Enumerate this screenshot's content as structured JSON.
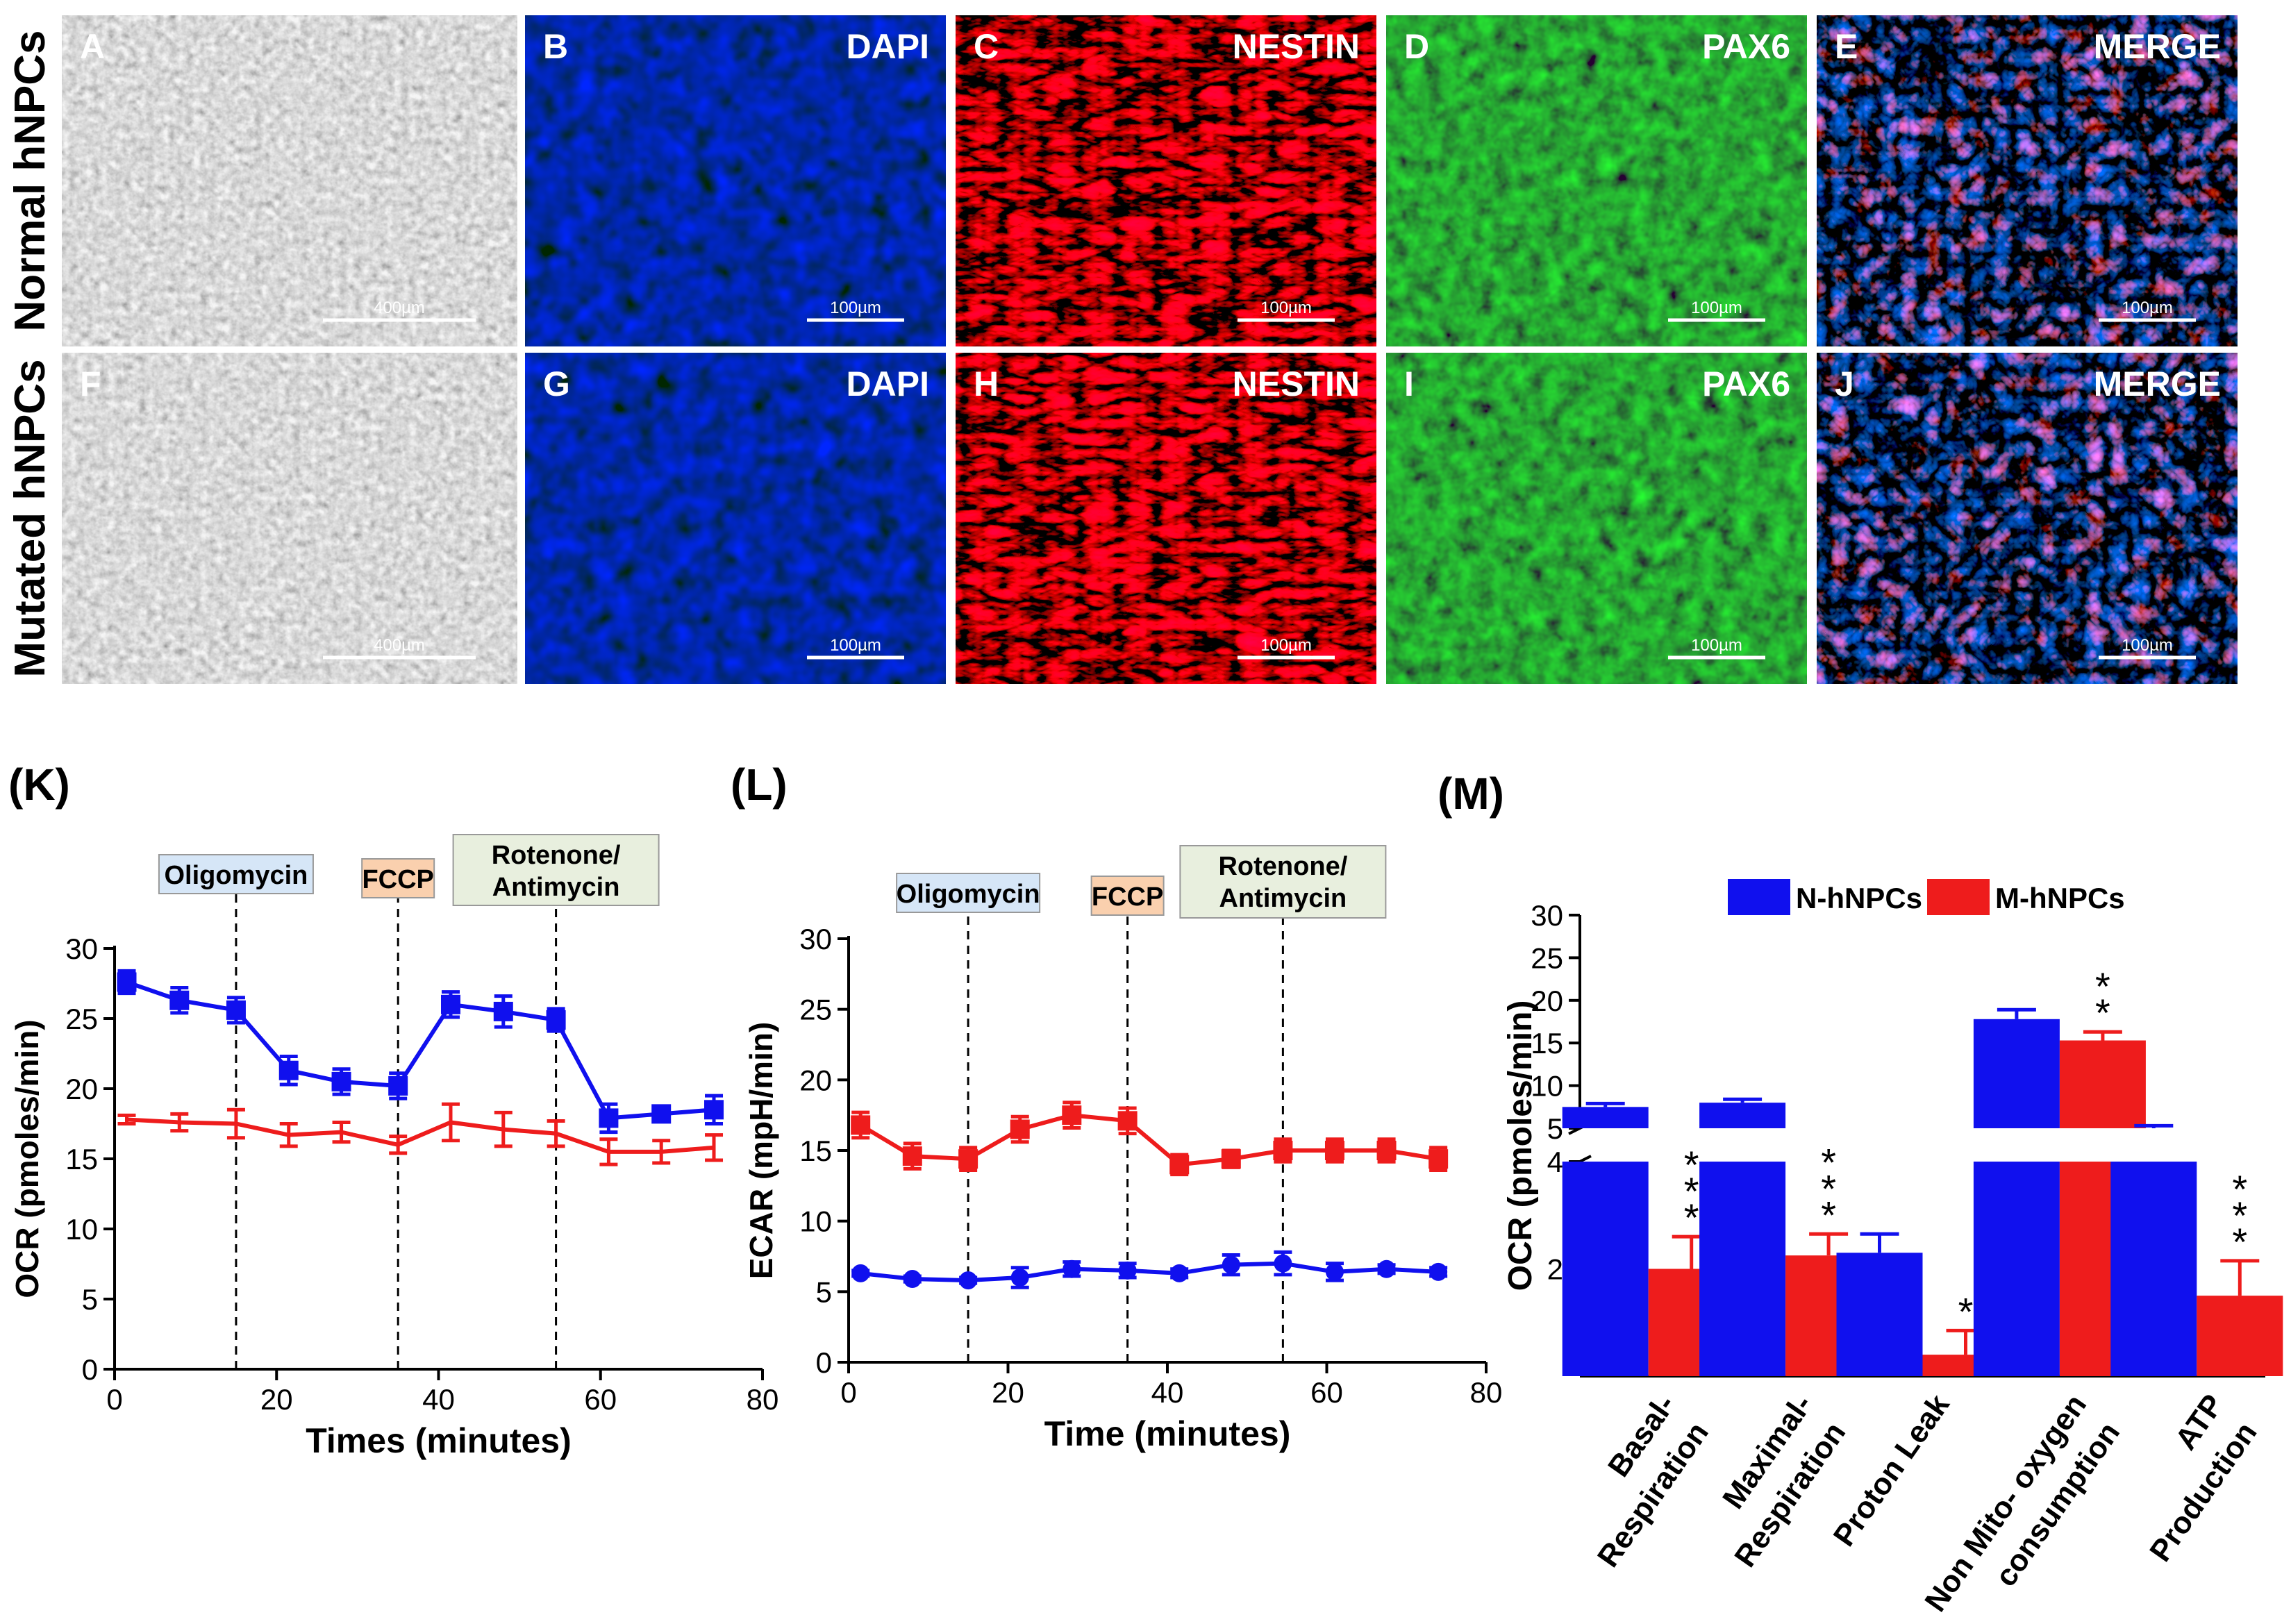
{
  "micrograph_panels": {
    "row_labels": [
      "Normal hNPCs",
      "Mutated hNPCs"
    ],
    "panels": [
      {
        "letter": "A",
        "title": "",
        "scale": "400µm",
        "kind": "phase"
      },
      {
        "letter": "B",
        "title": "DAPI",
        "scale": "100µm",
        "kind": "dapi"
      },
      {
        "letter": "C",
        "title": "NESTIN",
        "scale": "100µm",
        "kind": "nestin"
      },
      {
        "letter": "D",
        "title": "PAX6",
        "scale": "100µm",
        "kind": "pax6"
      },
      {
        "letter": "E",
        "title": "MERGE",
        "scale": "100µm",
        "kind": "merge"
      },
      {
        "letter": "F",
        "title": "",
        "scale": "400µm",
        "kind": "phase"
      },
      {
        "letter": "G",
        "title": "DAPI",
        "scale": "100µm",
        "kind": "dapi"
      },
      {
        "letter": "H",
        "title": "NESTIN",
        "scale": "100µm",
        "kind": "nestin"
      },
      {
        "letter": "I",
        "title": "PAX6",
        "scale": "100µm",
        "kind": "pax6"
      },
      {
        "letter": "J",
        "title": "MERGE",
        "scale": "100µm",
        "kind": "merge"
      }
    ]
  },
  "colors": {
    "normal": "#1010ee",
    "mutated": "#ee1c1c",
    "oligo_box": "#d6e6f7",
    "fccp_box": "#fad0ae",
    "rot_box": "#e8efde"
  },
  "chart_data": [
    {
      "panel_label": "(K)",
      "type": "line",
      "xlabel": "Times (minutes)",
      "ylabel": "OCR (pmoles/min)",
      "xlim": [
        0,
        80
      ],
      "ylim": [
        0,
        30
      ],
      "xticks": [
        0,
        20,
        40,
        60,
        80
      ],
      "yticks": [
        0,
        5,
        10,
        15,
        20,
        25,
        30
      ],
      "injections": [
        {
          "label": "Oligomycin",
          "x": 15,
          "box": "oligo"
        },
        {
          "label": "FCCP",
          "x": 35,
          "box": "fccp"
        },
        {
          "label": "Rotenone/\nAntimycin",
          "x": 54.5,
          "box": "rot"
        }
      ],
      "x": [
        1.5,
        8,
        15,
        21.5,
        28,
        35,
        41.5,
        48,
        54.5,
        61,
        67.5,
        74
      ],
      "series": [
        {
          "name": "N-hNPCs",
          "color": "normal",
          "marker": "square",
          "values": [
            27.6,
            26.3,
            25.6,
            21.3,
            20.5,
            20.2,
            26.0,
            25.5,
            24.9,
            17.9,
            18.2,
            18.5
          ],
          "errors": [
            0.8,
            0.9,
            0.9,
            1.0,
            0.9,
            0.9,
            0.9,
            1.1,
            0.8,
            1.0,
            0.5,
            1.0
          ]
        },
        {
          "name": "M-hNPCs",
          "color": "mutated",
          "marker": "tick",
          "values": [
            17.8,
            17.6,
            17.5,
            16.7,
            16.9,
            16.0,
            17.6,
            17.1,
            16.8,
            15.5,
            15.5,
            15.8
          ],
          "errors": [
            0.3,
            0.6,
            1.0,
            0.8,
            0.7,
            0.6,
            1.3,
            1.2,
            0.9,
            0.9,
            0.8,
            0.9
          ]
        }
      ]
    },
    {
      "panel_label": "(L)",
      "type": "line",
      "xlabel": "Time (minutes)",
      "ylabel": "ECAR (mpH/min)",
      "xlim": [
        0,
        80
      ],
      "ylim": [
        0,
        30
      ],
      "xticks": [
        0,
        20,
        40,
        60,
        80
      ],
      "yticks": [
        0,
        5,
        10,
        15,
        20,
        25,
        30
      ],
      "injections": [
        {
          "label": "Oligomycin",
          "x": 15,
          "box": "oligo"
        },
        {
          "label": "FCCP",
          "x": 35,
          "box": "fccp"
        },
        {
          "label": "Rotenone/\nAntimycin",
          "x": 54.5,
          "box": "rot"
        }
      ],
      "x": [
        1.5,
        8,
        15,
        21.5,
        28,
        35,
        41.5,
        48,
        54.5,
        61,
        67.5,
        74
      ],
      "series": [
        {
          "name": "M-hNPCs",
          "color": "mutated",
          "marker": "square",
          "values": [
            16.8,
            14.6,
            14.4,
            16.5,
            17.5,
            17.1,
            14.0,
            14.4,
            15.0,
            15.0,
            15.0,
            14.4
          ],
          "errors": [
            0.9,
            0.9,
            0.8,
            0.9,
            0.9,
            0.9,
            0.7,
            0.6,
            0.8,
            0.8,
            0.8,
            0.8
          ]
        },
        {
          "name": "N-hNPCs",
          "color": "normal",
          "marker": "circle",
          "values": [
            6.3,
            5.9,
            5.8,
            6.0,
            6.6,
            6.5,
            6.3,
            6.9,
            7.0,
            6.4,
            6.6,
            6.4
          ],
          "errors": [
            0.2,
            0.2,
            0.2,
            0.7,
            0.5,
            0.5,
            0.3,
            0.7,
            0.8,
            0.6,
            0.3,
            0.3
          ]
        }
      ]
    },
    {
      "panel_label": "(M)",
      "type": "bar",
      "ylabel": "OCR (pmoles/min)",
      "broken_axis": true,
      "lower_range": [
        0,
        4
      ],
      "upper_range": [
        5,
        30
      ],
      "lower_ticks": [
        2,
        4
      ],
      "upper_ticks": [
        5,
        10,
        15,
        20,
        25,
        30
      ],
      "legend": [
        "N-hNPCs",
        "M-hNPCs"
      ],
      "categories": [
        "Basal-\nRespiration",
        "Maximal-\nRespiration",
        "Proton Leak",
        "Non Mito- oxygen\nconsumption",
        "ATP\nProduction"
      ],
      "series": [
        {
          "name": "N-hNPCs",
          "color": "normal",
          "values": [
            7.5,
            8.0,
            2.3,
            17.8,
            5.0
          ],
          "errors": [
            0.4,
            0.4,
            0.35,
            1.1,
            0.3
          ]
        },
        {
          "name": "M-hNPCs",
          "color": "mutated",
          "values": [
            2.0,
            2.25,
            0.4,
            15.3,
            1.5
          ],
          "errors": [
            0.6,
            0.4,
            0.45,
            1.0,
            0.65
          ]
        }
      ],
      "significance": [
        "***",
        "***",
        "*",
        "**",
        "***"
      ]
    }
  ]
}
